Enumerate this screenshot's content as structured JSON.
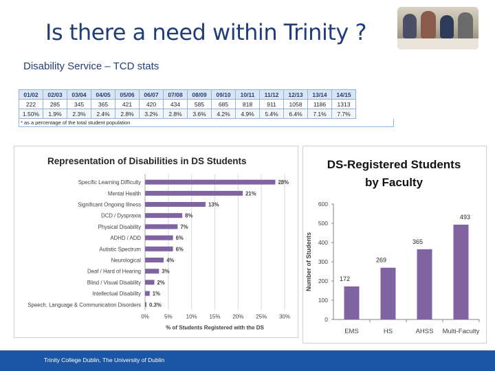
{
  "slide": {
    "title": "Is there a need within Trinity ?",
    "subtitle": "Disability Service – TCD stats"
  },
  "stats_table": {
    "years": [
      "01/02",
      "02/03",
      "03/04",
      "04/05",
      "05/06",
      "06/07",
      "07/08",
      "08/09",
      "09/10",
      "10/11",
      "11/12",
      "12/13",
      "13/14",
      "14/15"
    ],
    "counts": [
      "222",
      "285",
      "345",
      "365",
      "421",
      "420",
      "434",
      "585",
      "685",
      "818",
      "911",
      "1058",
      "1186",
      "1313"
    ],
    "percentages": [
      "1.50%",
      "1.9%",
      "2.3%",
      "2.4%",
      "2.8%",
      "3.2%",
      "2.8%",
      "3.6%",
      "4.2%",
      "4.9%",
      "5.4%",
      "6.4%",
      "7.1%",
      "7.7%"
    ],
    "note": "* as a percentage of the total student population"
  },
  "footer": {
    "text": "Trinity College Dublin, The University of Dublin"
  },
  "colors": {
    "bar": "#8064a2",
    "title": "#1f3e79",
    "footer": "#1b55a4",
    "grid": "#d9d9d9"
  },
  "chart_data": [
    {
      "type": "bar",
      "orientation": "horizontal",
      "title": "Representation of Disabilities in DS Students",
      "xlabel": "% of Students Registered with the DS",
      "ylabel": "",
      "categories": [
        "Specific Learning Difficulty",
        "Mental Health",
        "Significant Ongoing Illness",
        "DCD / Dyspraxia",
        "Physical Disability",
        "ADHD / ADD",
        "Autistic Spectrum",
        "Neurological",
        "Deaf / Hard of Hearing",
        "Blind / Visual Disability",
        "Intellectual Disability",
        "Speech, Language & Communication Disorders"
      ],
      "values": [
        28,
        21,
        13,
        8,
        7,
        6,
        6,
        4,
        3,
        2,
        1,
        0.3
      ],
      "value_labels": [
        "28%",
        "21%",
        "13%",
        "8%",
        "7%",
        "6%",
        "6%",
        "4%",
        "3%",
        "2%",
        "1%",
        "0.3%"
      ],
      "xlim": [
        0,
        30
      ],
      "xticks": [
        "0%",
        "5%",
        "10%",
        "15%",
        "20%",
        "25%",
        "30%"
      ],
      "xtick_values": [
        0,
        5,
        10,
        15,
        20,
        25,
        30
      ],
      "grid": true
    },
    {
      "type": "bar",
      "orientation": "vertical",
      "title": "DS-Registered Students by Faculty",
      "title_lines": [
        "DS-Registered Students",
        "by Faculty"
      ],
      "xlabel": "",
      "ylabel": "Number of Students",
      "categories": [
        "EMS",
        "HS",
        "AHSS",
        "Multi-Faculty"
      ],
      "values": [
        172,
        269,
        365,
        493
      ],
      "value_labels": [
        "172",
        "269",
        "365",
        "493"
      ],
      "ylim": [
        0,
        600
      ],
      "yticks": [
        "0",
        "100",
        "200",
        "300",
        "400",
        "500",
        "600"
      ],
      "ytick_values": [
        0,
        100,
        200,
        300,
        400,
        500,
        600
      ],
      "grid": false
    }
  ]
}
